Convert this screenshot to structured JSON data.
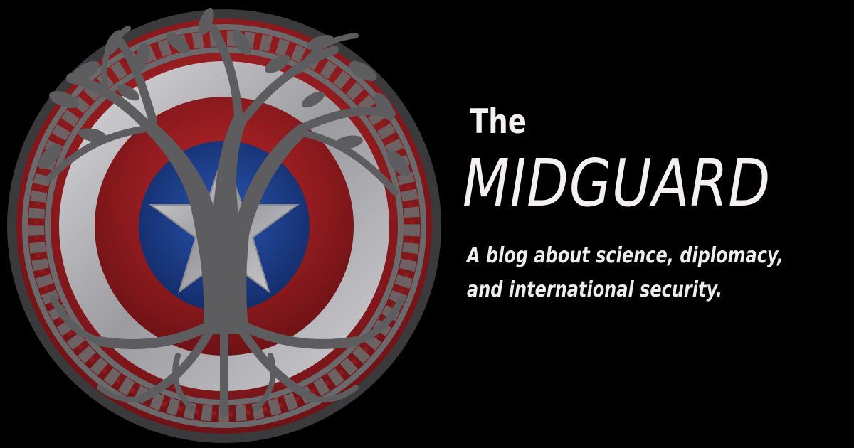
{
  "banner": {
    "title_prefix": "The",
    "title": "MIDGUARD",
    "tagline_line1": "A blog about science, diplomacy,",
    "tagline_line2": "and international security."
  },
  "emblem": {
    "icon": "tree-of-life-shield-icon",
    "colors": {
      "red": "#8e1c1e",
      "red_bright": "#c0282a",
      "silver": "#b8b8bc",
      "blue": "#1d3f8c",
      "tree": "#5d5d60",
      "knot": "#6a6a6c"
    }
  },
  "colors": {
    "background": "#000000",
    "text": "#f4f0f0"
  }
}
